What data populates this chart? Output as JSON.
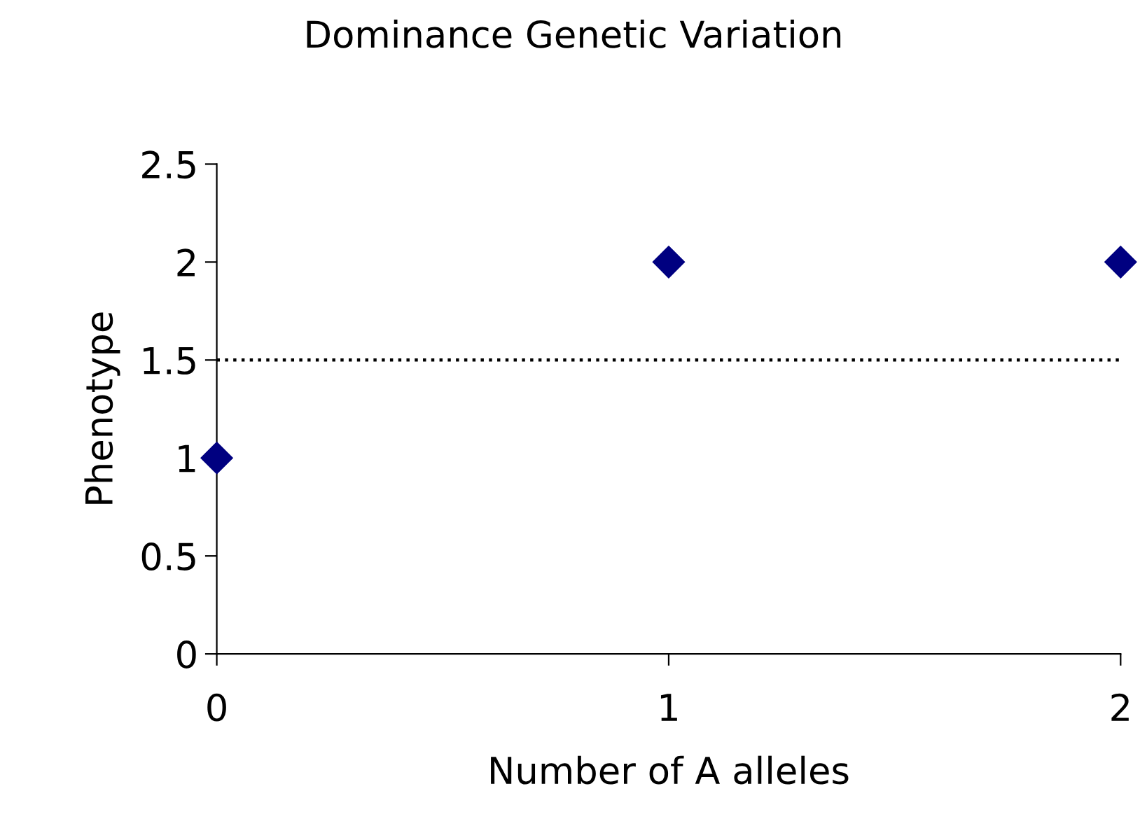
{
  "chart_data": {
    "type": "scatter",
    "title": "Dominance Genetic Variation",
    "xlabel": "Number of A alleles",
    "ylabel": "Phenotype",
    "x": [
      0,
      1,
      2
    ],
    "series": [
      {
        "color": "#000080",
        "values": [
          1,
          2,
          2
        ]
      }
    ],
    "marker": "diamond",
    "xlim": [
      0,
      2
    ],
    "xticks": [
      0,
      1,
      2
    ],
    "ylim": [
      0,
      2.5
    ],
    "yticks": [
      0,
      0.5,
      1,
      1.5,
      2,
      2.5
    ],
    "ref_lines": [
      {
        "axis": "y",
        "value": 1.5,
        "label": null,
        "color": "#000000",
        "line_style": "dotted"
      }
    ],
    "grid": false
  }
}
